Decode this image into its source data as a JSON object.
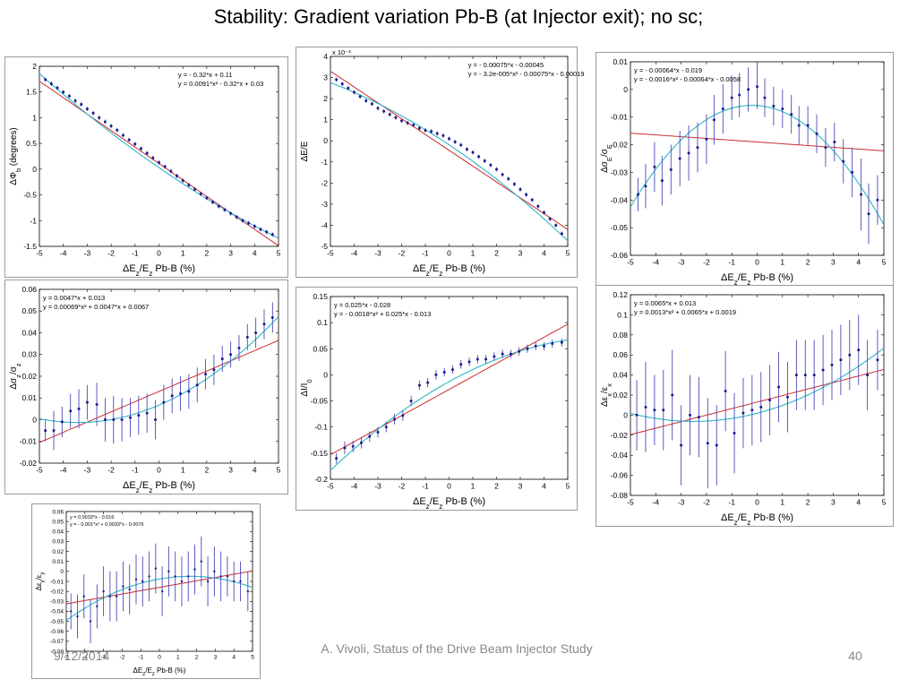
{
  "slide": {
    "title": "Stability: Gradient variation Pb-B (at Injector exit); no sc;",
    "footer_date": "9/12/2014",
    "footer_caption": "A. Vivoli, Status of the Drive Beam Injector Study",
    "page_number": "40"
  },
  "colors": {
    "data": "#1a1a8c",
    "errorbar": "#4a4ab8",
    "linear_fit": "#cc2b2b",
    "quad_fit": "#2fb5c9",
    "axis": "#000000"
  },
  "chart_data": [
    {
      "type": "scatter",
      "xlabel": "ΔE_z/E_z Pb-B (%)",
      "ylabel": "ΔΦ_b (degrees)",
      "xlim": [
        -5,
        5
      ],
      "ylim": [
        -1.5,
        2
      ],
      "xticks": [
        "-5",
        "-4",
        "-3",
        "-2",
        "-1",
        "0",
        "1",
        "2",
        "3",
        "4",
        "5"
      ],
      "yticks": [
        "-1.5",
        "-1",
        "-0.5",
        "0",
        "0.5",
        "1",
        "1.5",
        "2"
      ],
      "yscale_label": "",
      "legend": [
        "y = - 0.32*x + 0.11",
        "y = 0.0091*x² - 0.32*x + 0.03"
      ],
      "fits": {
        "linear": [
          0,
          -0.32,
          0.11
        ],
        "quadratic": [
          0.0091,
          -0.32,
          0.03
        ]
      },
      "x": [
        -4.75,
        -4.5,
        -4.25,
        -4,
        -3.75,
        -3.5,
        -3.25,
        -3,
        -2.75,
        -2.5,
        -2.25,
        -2,
        -1.75,
        -1.5,
        -1.25,
        -1,
        -0.75,
        -0.5,
        -0.25,
        0,
        0.25,
        0.5,
        0.75,
        1,
        1.25,
        1.5,
        1.75,
        2,
        2.25,
        2.5,
        2.75,
        3,
        3.25,
        3.5,
        3.75,
        4,
        4.25,
        4.5,
        4.75
      ],
      "y": [
        1.74,
        1.66,
        1.58,
        1.5,
        1.42,
        1.33,
        1.26,
        1.17,
        1.09,
        1.0,
        0.92,
        0.84,
        0.76,
        0.66,
        0.57,
        0.49,
        0.4,
        0.31,
        0.22,
        0.13,
        0.05,
        -0.04,
        -0.13,
        -0.22,
        -0.31,
        -0.39,
        -0.48,
        -0.56,
        -0.64,
        -0.72,
        -0.79,
        -0.86,
        -0.93,
        -1.0,
        -1.05,
        -1.11,
        -1.17,
        -1.22,
        -1.27
      ],
      "err": []
    },
    {
      "type": "scatter",
      "xlabel": "ΔE_z/E_z Pb-B (%)",
      "ylabel": "ΔE/E",
      "xlim": [
        -5,
        5
      ],
      "ylim": [
        -5,
        4
      ],
      "xticks": [
        "-5",
        "-4",
        "-3",
        "-2",
        "-1",
        "0",
        "1",
        "2",
        "3",
        "4",
        "5"
      ],
      "yticks": [
        "-5",
        "-4",
        "-3",
        "-2",
        "-1",
        "0",
        "1",
        "2",
        "3",
        "4"
      ],
      "yscale_label": "x 10⁻³",
      "legend": [
        "y = - 0.00075*x - 0.00045",
        "y = - 3.2e-005*x² - 0.00075*x - 0.00019"
      ],
      "fits": {
        "linear": [
          0,
          -0.75,
          -0.45
        ],
        "quadratic": [
          -0.032,
          -0.75,
          -0.19
        ]
      },
      "x": [
        -4.75,
        -4.5,
        -4.25,
        -4,
        -3.75,
        -3.5,
        -3.25,
        -3,
        -2.75,
        -2.5,
        -2.25,
        -2,
        -1.75,
        -1.5,
        -1.25,
        -1,
        -0.75,
        -0.5,
        -0.25,
        0,
        0.25,
        0.5,
        0.75,
        1,
        1.25,
        1.5,
        1.75,
        2,
        2.25,
        2.5,
        2.75,
        3,
        3.25,
        3.5,
        3.75,
        4,
        4.25,
        4.5,
        4.75
      ],
      "y": [
        2.9,
        2.7,
        2.5,
        2.3,
        2.1,
        1.9,
        1.75,
        1.55,
        1.4,
        1.25,
        1.1,
        0.95,
        0.85,
        0.75,
        0.6,
        0.5,
        0.45,
        0.35,
        0.25,
        0.1,
        -0.05,
        -0.2,
        -0.4,
        -0.55,
        -0.75,
        -0.95,
        -1.15,
        -1.35,
        -1.6,
        -1.8,
        -2.05,
        -2.3,
        -2.55,
        -2.8,
        -3.1,
        -3.4,
        -3.7,
        -4.0,
        -4.4
      ],
      "err": []
    },
    {
      "type": "scatter",
      "xlabel": "ΔE_z/E_z Pb-B (%)",
      "ylabel": "Δσ_E/σ_E",
      "xlim": [
        -5,
        5
      ],
      "ylim": [
        -0.06,
        0.01
      ],
      "xticks": [
        "-5",
        "-4",
        "-3",
        "-2",
        "-1",
        "0",
        "1",
        "2",
        "3",
        "4",
        "5"
      ],
      "yticks": [
        "-0.06",
        "-0.05",
        "-0.04",
        "-0.03",
        "-0.02",
        "-0.01",
        "0",
        "0.01"
      ],
      "yscale_label": "",
      "legend": [
        "y = - 0.00064*x - 0.019",
        "y = - 0.0016*x² - 0.00064*x - 0.0058"
      ],
      "fits": {
        "linear": [
          0,
          -0.00064,
          -0.019
        ],
        "quadratic": [
          -0.0016,
          -0.00064,
          -0.0058
        ]
      },
      "x": [
        -4.7,
        -4.4,
        -4.05,
        -3.75,
        -3.4,
        -3.05,
        -2.7,
        -2.35,
        -2.0,
        -1.7,
        -1.35,
        -1.0,
        -0.7,
        -0.35,
        0.0,
        0.3,
        0.65,
        1.0,
        1.35,
        1.65,
        2.0,
        2.35,
        2.7,
        3.05,
        3.4,
        3.75,
        4.1,
        4.4,
        4.75
      ],
      "y": [
        -0.038,
        -0.035,
        -0.028,
        -0.033,
        -0.029,
        -0.025,
        -0.023,
        -0.021,
        -0.018,
        -0.011,
        -0.007,
        -0.003,
        -0.002,
        0.0,
        0.001,
        -0.003,
        -0.006,
        -0.007,
        -0.009,
        -0.013,
        -0.013,
        -0.016,
        -0.021,
        -0.019,
        -0.026,
        -0.03,
        -0.038,
        -0.045,
        -0.04
      ],
      "err": [
        0.006,
        0.008,
        0.009,
        0.009,
        0.009,
        0.01,
        0.01,
        0.009,
        0.009,
        0.009,
        0.009,
        0.008,
        0.008,
        0.008,
        0.008,
        0.007,
        0.007,
        0.007,
        0.007,
        0.007,
        0.007,
        0.007,
        0.007,
        0.007,
        0.008,
        0.009,
        0.013,
        0.011,
        0.009
      ]
    },
    {
      "type": "scatter",
      "xlabel": "ΔE_z/E_z Pb-B (%)",
      "ylabel": "Δσ_z/σ_z",
      "xlim": [
        -5,
        5
      ],
      "ylim": [
        -0.02,
        0.06
      ],
      "xticks": [
        "-5",
        "-4",
        "-3",
        "-2",
        "-1",
        "0",
        "1",
        "2",
        "3",
        "4",
        "5"
      ],
      "yticks": [
        "-0.02",
        "-0.01",
        "0",
        "0.01",
        "0.02",
        "0.03",
        "0.04",
        "0.05",
        "0.06"
      ],
      "yscale_label": "",
      "legend": [
        "y = 0.0047*x + 0.013",
        "y = 0.00069*x² + 0.0047*x + 0.0067"
      ],
      "fits": {
        "linear": [
          0,
          0.0047,
          0.013
        ],
        "quadratic": [
          0.00069,
          0.0047,
          0.0067
        ]
      },
      "x": [
        -4.75,
        -4.4,
        -4.05,
        -3.7,
        -3.35,
        -3.0,
        -2.6,
        -2.25,
        -1.9,
        -1.55,
        -1.2,
        -0.85,
        -0.5,
        -0.15,
        0.2,
        0.55,
        0.9,
        1.25,
        1.6,
        1.95,
        2.3,
        2.65,
        3.0,
        3.35,
        3.7,
        4.05,
        4.4,
        4.75
      ],
      "y": [
        -0.005,
        -0.005,
        -0.001,
        0.004,
        0.005,
        0.008,
        0.007,
        0.0,
        0.0,
        0.0,
        0.001,
        0.002,
        0.003,
        0.0,
        0.008,
        0.011,
        0.012,
        0.013,
        0.016,
        0.021,
        0.023,
        0.028,
        0.03,
        0.033,
        0.038,
        0.04,
        0.044,
        0.047
      ],
      "err": [
        0.005,
        0.009,
        0.007,
        0.008,
        0.009,
        0.008,
        0.01,
        0.01,
        0.011,
        0.01,
        0.009,
        0.009,
        0.009,
        0.009,
        0.008,
        0.008,
        0.008,
        0.008,
        0.008,
        0.007,
        0.007,
        0.006,
        0.006,
        0.006,
        0.006,
        0.007,
        0.007,
        0.007
      ]
    },
    {
      "type": "scatter",
      "xlabel": "ΔE_z/E_z Pb-B (%)",
      "ylabel": "ΔI/I_0",
      "xlim": [
        -5,
        5
      ],
      "ylim": [
        -0.2,
        0.15
      ],
      "xticks": [
        "-5",
        "-4",
        "-3",
        "-2",
        "-1",
        "0",
        "1",
        "2",
        "3",
        "4",
        "5"
      ],
      "yticks": [
        "-0.2",
        "-0.15",
        "-0.1",
        "-0.05",
        "0",
        "0.05",
        "0.1",
        "0.15"
      ],
      "yscale_label": "",
      "legend": [
        "y = 0.025*x - 0.028",
        "y = - 0.0018*x² + 0.025*x - 0.013"
      ],
      "fits": {
        "linear": [
          0,
          0.025,
          -0.028
        ],
        "quadratic": [
          -0.0018,
          0.025,
          -0.013
        ]
      },
      "x": [
        -4.75,
        -4.4,
        -4.05,
        -3.7,
        -3.35,
        -3.0,
        -2.65,
        -2.3,
        -1.95,
        -1.6,
        -1.25,
        -0.9,
        -0.55,
        -0.2,
        0.15,
        0.5,
        0.85,
        1.2,
        1.55,
        1.9,
        2.25,
        2.6,
        2.95,
        3.3,
        3.65,
        4.0,
        4.35,
        4.75
      ],
      "y": [
        -0.16,
        -0.14,
        -0.137,
        -0.13,
        -0.118,
        -0.11,
        -0.1,
        -0.085,
        -0.078,
        -0.05,
        -0.02,
        -0.015,
        0.0,
        0.005,
        0.01,
        0.02,
        0.025,
        0.03,
        0.03,
        0.035,
        0.04,
        0.04,
        0.045,
        0.05,
        0.055,
        0.055,
        0.06,
        0.062
      ],
      "err": [
        0.01,
        0.012,
        0.011,
        0.011,
        0.01,
        0.01,
        0.01,
        0.01,
        0.01,
        0.01,
        0.009,
        0.009,
        0.009,
        0.008,
        0.008,
        0.008,
        0.008,
        0.008,
        0.008,
        0.008,
        0.008,
        0.008,
        0.008,
        0.008,
        0.008,
        0.008,
        0.008,
        0.008
      ]
    },
    {
      "type": "scatter",
      "xlabel": "ΔE_z/E_z Pb-B (%)",
      "ylabel": "Δε_x/ε_x",
      "xlim": [
        -5,
        5
      ],
      "ylim": [
        -0.08,
        0.12
      ],
      "xticks": [
        "-5",
        "-4",
        "-3",
        "-2",
        "-1",
        "0",
        "1",
        "2",
        "3",
        "4",
        "5"
      ],
      "yticks": [
        "-0.08",
        "-0.06",
        "-0.04",
        "-0.02",
        "0",
        "0.02",
        "0.04",
        "0.06",
        "0.08",
        "0.1",
        "0.12"
      ],
      "yscale_label": "",
      "legend": [
        "y = 0.0065*x + 0.013",
        "y = 0.0013*x² + 0.0065*x + 0.0019"
      ],
      "fits": {
        "linear": [
          0,
          0.0065,
          0.013
        ],
        "quadratic": [
          0.0013,
          0.0065,
          0.0019
        ]
      },
      "x": [
        -4.75,
        -4.4,
        -4.05,
        -3.7,
        -3.35,
        -3.0,
        -2.65,
        -2.3,
        -1.95,
        -1.6,
        -1.25,
        -0.9,
        -0.55,
        -0.2,
        0.15,
        0.5,
        0.85,
        1.2,
        1.55,
        1.9,
        2.25,
        2.6,
        2.95,
        3.3,
        3.65,
        4.0,
        4.35,
        4.75
      ],
      "y": [
        0.0,
        0.008,
        0.005,
        0.005,
        0.02,
        -0.03,
        0.0,
        -0.002,
        -0.028,
        -0.03,
        0.024,
        -0.018,
        0.002,
        0.005,
        0.008,
        0.015,
        0.028,
        0.018,
        0.04,
        0.04,
        0.04,
        0.045,
        0.05,
        0.055,
        0.06,
        0.065,
        0.04,
        0.055
      ],
      "err": [
        0.035,
        0.045,
        0.035,
        0.04,
        0.045,
        0.04,
        0.04,
        0.04,
        0.045,
        0.04,
        0.04,
        0.04,
        0.035,
        0.035,
        0.035,
        0.035,
        0.035,
        0.035,
        0.035,
        0.035,
        0.035,
        0.035,
        0.035,
        0.035,
        0.035,
        0.035,
        0.035,
        0.03
      ]
    },
    {
      "type": "scatter",
      "xlabel": "ΔE_z/E_z Pb-B (%)",
      "ylabel": "Δε_y/ε_y",
      "xlim": [
        -5,
        5
      ],
      "ylim": [
        -0.08,
        0.06
      ],
      "xticks": [
        "-5",
        "-4",
        "-3",
        "-2",
        "-1",
        "0",
        "1",
        "2",
        "3",
        "4",
        "5"
      ],
      "yticks": [
        "-0.08",
        "-0.07",
        "-0.06",
        "-0.05",
        "-0.04",
        "-0.03",
        "-0.02",
        "-0.01",
        "0",
        "0.01",
        "0.02",
        "0.03",
        "0.04",
        "0.05",
        "0.06"
      ],
      "yscale_label": "",
      "legend": [
        "y = 0.0033*x - 0.016",
        "y = - 0.001*x² + 0.0033*x - 0.0076"
      ],
      "fits": {
        "linear": [
          0,
          0.0033,
          -0.016
        ],
        "quadratic": [
          -0.001,
          0.0033,
          -0.0076
        ]
      },
      "x": [
        -4.75,
        -4.4,
        -4.05,
        -3.7,
        -3.35,
        -3.0,
        -2.65,
        -2.3,
        -1.95,
        -1.6,
        -1.25,
        -0.9,
        -0.55,
        -0.2,
        0.15,
        0.5,
        0.85,
        1.2,
        1.55,
        1.9,
        2.25,
        2.6,
        2.95,
        3.3,
        3.65,
        4.0,
        4.35,
        4.75
      ],
      "y": [
        -0.04,
        -0.045,
        -0.025,
        -0.05,
        -0.035,
        -0.02,
        -0.025,
        -0.025,
        -0.015,
        -0.018,
        -0.008,
        -0.01,
        -0.005,
        0.003,
        -0.02,
        0.0,
        -0.005,
        -0.01,
        -0.005,
        0.002,
        0.01,
        -0.01,
        0.0,
        -0.005,
        -0.005,
        -0.01,
        -0.01,
        -0.02
      ],
      "err": [
        0.018,
        0.022,
        0.022,
        0.022,
        0.022,
        0.025,
        0.025,
        0.025,
        0.025,
        0.025,
        0.025,
        0.025,
        0.025,
        0.025,
        0.025,
        0.025,
        0.025,
        0.025,
        0.025,
        0.025,
        0.025,
        0.025,
        0.025,
        0.025,
        0.02,
        0.02,
        0.02,
        0.02
      ]
    }
  ]
}
